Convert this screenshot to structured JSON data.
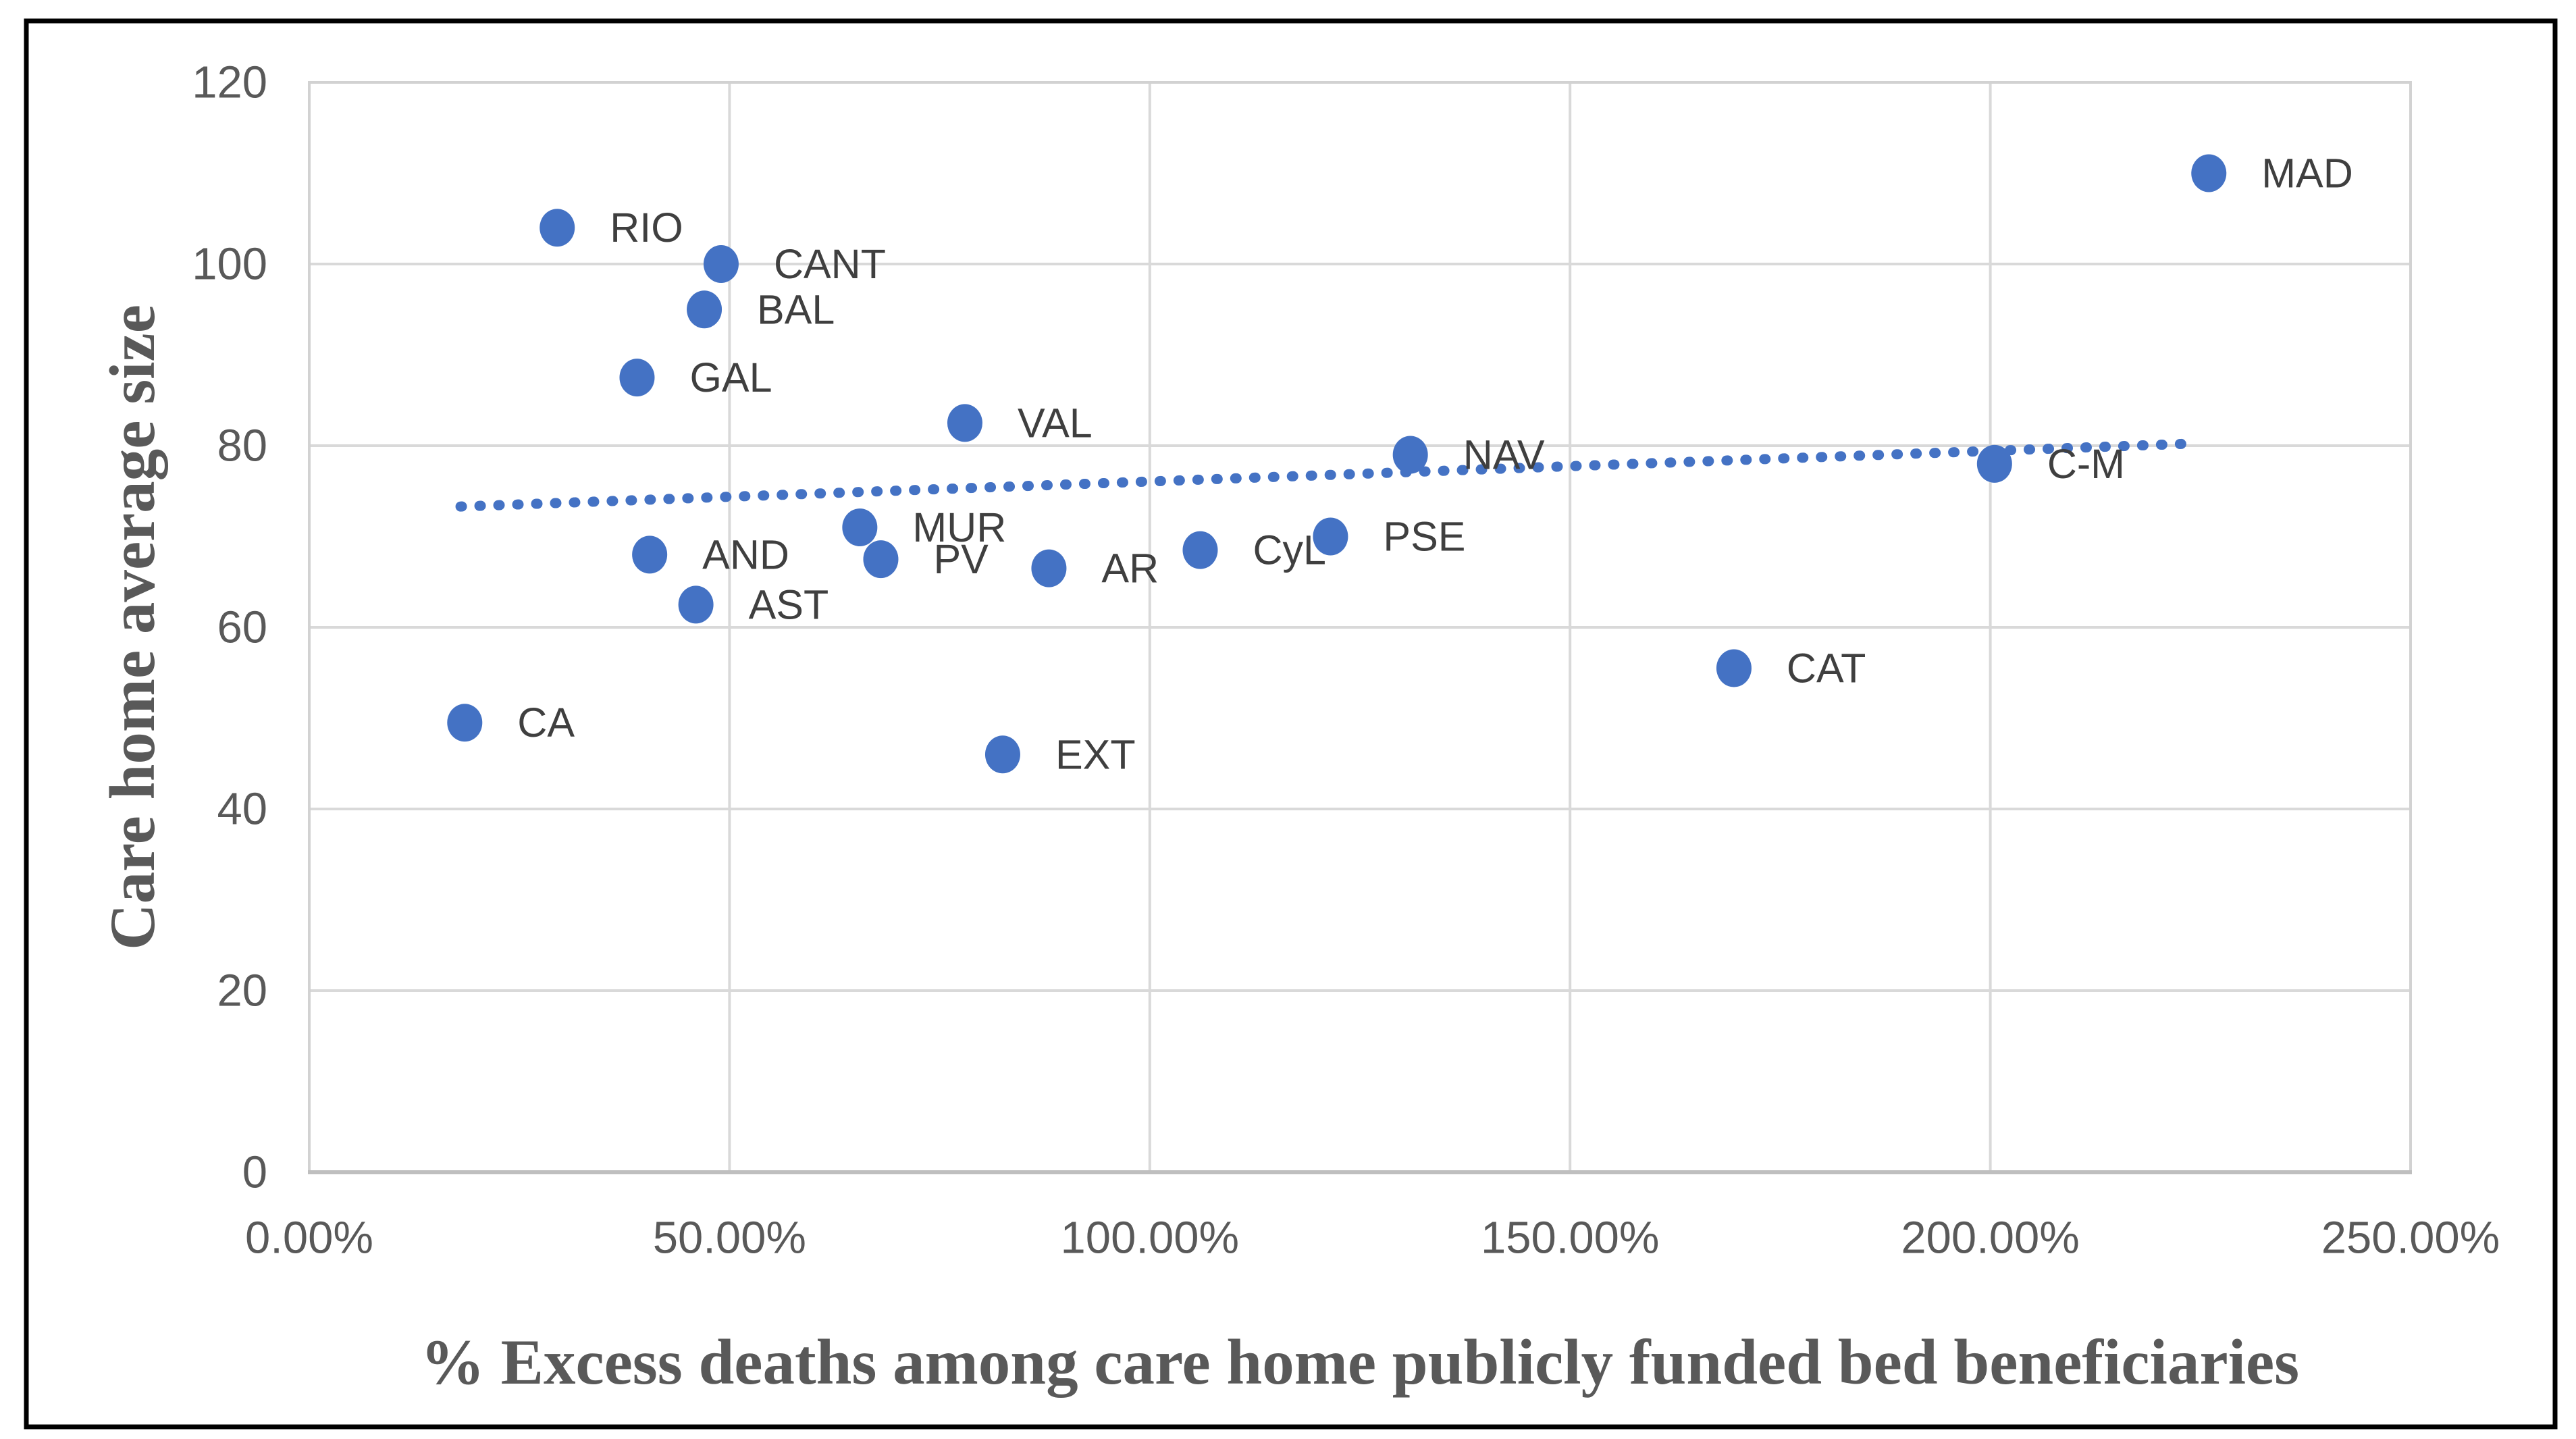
{
  "chart_data": {
    "type": "scatter",
    "title": "",
    "xlabel": "% Excess deaths among care home publicly funded bed beneficiaries",
    "ylabel": "Care home average size",
    "x_ticks": [
      "0.00%",
      "50.00%",
      "100.00%",
      "150.00%",
      "200.00%",
      "250.00%"
    ],
    "x_tick_values": [
      0,
      50,
      100,
      150,
      200,
      250
    ],
    "y_ticks": [
      "0",
      "20",
      "40",
      "60",
      "80",
      "100",
      "120"
    ],
    "y_tick_values": [
      0,
      20,
      40,
      60,
      80,
      100,
      120
    ],
    "xlim": [
      0,
      250
    ],
    "ylim": [
      0,
      120
    ],
    "grid": true,
    "legend": "none",
    "points": [
      {
        "label": "CA",
        "x": 18.5,
        "y": 49.5
      },
      {
        "label": "RIO",
        "x": 29.5,
        "y": 104
      },
      {
        "label": "GAL",
        "x": 39,
        "y": 87.5
      },
      {
        "label": "AND",
        "x": 40.5,
        "y": 68
      },
      {
        "label": "AST",
        "x": 46,
        "y": 62.5
      },
      {
        "label": "BAL",
        "x": 47,
        "y": 95
      },
      {
        "label": "CANT",
        "x": 49,
        "y": 100
      },
      {
        "label": "MUR",
        "x": 65.5,
        "y": 71
      },
      {
        "label": "PV",
        "x": 68,
        "y": 67.5
      },
      {
        "label": "VAL",
        "x": 78,
        "y": 82.5
      },
      {
        "label": "EXT",
        "x": 82.5,
        "y": 46
      },
      {
        "label": "AR",
        "x": 88,
        "y": 66.5
      },
      {
        "label": "CyL",
        "x": 106,
        "y": 68.5
      },
      {
        "label": "PSE",
        "x": 121.5,
        "y": 70
      },
      {
        "label": "NAV",
        "x": 131,
        "y": 79
      },
      {
        "label": "CAT",
        "x": 169.5,
        "y": 55.5
      },
      {
        "label": "C-M",
        "x": 200.5,
        "y": 78
      },
      {
        "label": "MAD",
        "x": 226,
        "y": 110
      }
    ],
    "trendline": {
      "style": "dotted",
      "x1_pct": 18,
      "y1": 73.3,
      "x2_pct": 223,
      "y2": 80.2
    },
    "colors": {
      "marker": "#4472C4",
      "trend": "#4472C4",
      "grid": "#D9D9D9",
      "plot_border": "#D2D2D2",
      "axis_line": "#BFBFBF",
      "tick_text": "#595959",
      "title_text": "#595959",
      "label_text": "#3F3F3F",
      "frame": "#000000",
      "background": "#FFFFFF"
    }
  }
}
